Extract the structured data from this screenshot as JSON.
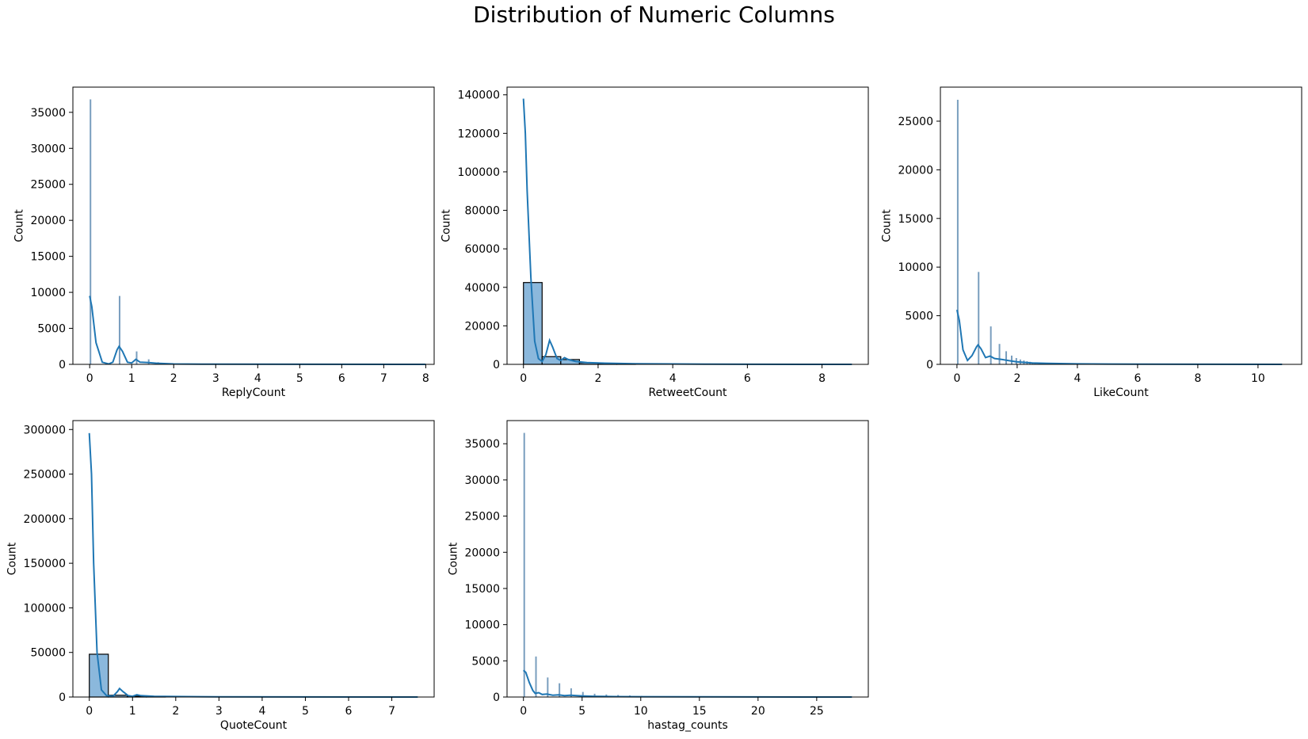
{
  "figure": {
    "title": "Distribution of Numeric Columns"
  },
  "colors": {
    "bar_fill": "#8bb8dc",
    "bar_edge": "#000000",
    "kde_line": "#1f77b4",
    "spike": "#4c7da8"
  },
  "chart_data": [
    {
      "type": "bar",
      "title": "",
      "xlabel": "ReplyCount",
      "ylabel": "Count",
      "xlim": [
        -0.4,
        8.2
      ],
      "ylim": [
        0,
        38500
      ],
      "xticks": [
        "0",
        "1",
        "2",
        "3",
        "4",
        "5",
        "6",
        "7",
        "8"
      ],
      "yticks": [
        "0",
        "5000",
        "10000",
        "15000",
        "20000",
        "25000",
        "30000",
        "35000"
      ],
      "bars": [
        {
          "x": 0.0,
          "w": 0.025,
          "h": 36800
        },
        {
          "x": 0.693,
          "w": 0.025,
          "h": 9500
        },
        {
          "x": 1.099,
          "w": 0.025,
          "h": 1800
        },
        {
          "x": 1.386,
          "w": 0.025,
          "h": 700
        },
        {
          "x": 1.609,
          "w": 0.025,
          "h": 300
        }
      ],
      "kde": [
        [
          0,
          9500
        ],
        [
          0.05,
          8000
        ],
        [
          0.15,
          3000
        ],
        [
          0.3,
          300
        ],
        [
          0.45,
          50
        ],
        [
          0.55,
          300
        ],
        [
          0.65,
          2000
        ],
        [
          0.7,
          2500
        ],
        [
          0.78,
          1800
        ],
        [
          0.9,
          300
        ],
        [
          1.0,
          200
        ],
        [
          1.1,
          700
        ],
        [
          1.2,
          300
        ],
        [
          1.4,
          250
        ],
        [
          1.6,
          150
        ],
        [
          2,
          50
        ],
        [
          3,
          20
        ],
        [
          5,
          10
        ],
        [
          8,
          0
        ]
      ]
    },
    {
      "type": "bar",
      "title": "",
      "xlabel": "RetweetCount",
      "ylabel": "Count",
      "xlim": [
        -0.44,
        9.24
      ],
      "ylim": [
        0,
        144000
      ],
      "xticks": [
        "0",
        "2",
        "4",
        "6",
        "8"
      ],
      "yticks": [
        "0",
        "20000",
        "40000",
        "60000",
        "80000",
        "100000",
        "120000",
        "140000"
      ],
      "bars": [
        {
          "x": 0.0,
          "w": 0.5,
          "h": 42500
        },
        {
          "x": 0.5,
          "w": 0.5,
          "h": 4000
        },
        {
          "x": 1.0,
          "w": 0.5,
          "h": 2500
        },
        {
          "x": 1.5,
          "w": 0.5,
          "h": 800
        },
        {
          "x": 2.0,
          "w": 0.5,
          "h": 400
        },
        {
          "x": 2.5,
          "w": 0.5,
          "h": 200
        }
      ],
      "kde": [
        [
          0,
          138000
        ],
        [
          0.05,
          120000
        ],
        [
          0.1,
          90000
        ],
        [
          0.2,
          45000
        ],
        [
          0.3,
          12000
        ],
        [
          0.4,
          3000
        ],
        [
          0.5,
          1500
        ],
        [
          0.6,
          5000
        ],
        [
          0.7,
          12500
        ],
        [
          0.78,
          9000
        ],
        [
          0.9,
          3000
        ],
        [
          1.0,
          2000
        ],
        [
          1.1,
          3500
        ],
        [
          1.2,
          2500
        ],
        [
          1.4,
          1500
        ],
        [
          1.7,
          900
        ],
        [
          2,
          700
        ],
        [
          3,
          300
        ],
        [
          4,
          200
        ],
        [
          5,
          100
        ],
        [
          6,
          60
        ],
        [
          8,
          20
        ],
        [
          8.8,
          0
        ]
      ]
    },
    {
      "type": "bar",
      "title": "",
      "xlabel": "LikeCount",
      "ylabel": "Count",
      "xlim": [
        -0.55,
        11.45
      ],
      "ylim": [
        0,
        28500
      ],
      "xticks": [
        "0",
        "2",
        "4",
        "6",
        "8",
        "10"
      ],
      "yticks": [
        "0",
        "5000",
        "10000",
        "15000",
        "20000",
        "25000"
      ],
      "bars": [
        {
          "x": 0.0,
          "w": 0.04,
          "h": 27200
        },
        {
          "x": 0.693,
          "w": 0.04,
          "h": 9500
        },
        {
          "x": 1.099,
          "w": 0.04,
          "h": 3900
        },
        {
          "x": 1.386,
          "w": 0.04,
          "h": 2100
        },
        {
          "x": 1.609,
          "w": 0.04,
          "h": 1350
        },
        {
          "x": 1.792,
          "w": 0.04,
          "h": 900
        },
        {
          "x": 1.946,
          "w": 0.04,
          "h": 650
        },
        {
          "x": 2.079,
          "w": 0.04,
          "h": 500
        },
        {
          "x": 2.197,
          "w": 0.04,
          "h": 400
        },
        {
          "x": 2.303,
          "w": 0.04,
          "h": 320
        },
        {
          "x": 2.398,
          "w": 0.04,
          "h": 260
        },
        {
          "x": 2.485,
          "w": 0.04,
          "h": 210
        },
        {
          "x": 2.565,
          "w": 0.04,
          "h": 170
        }
      ],
      "kde": [
        [
          0,
          5600
        ],
        [
          0.08,
          4500
        ],
        [
          0.2,
          1500
        ],
        [
          0.35,
          400
        ],
        [
          0.5,
          900
        ],
        [
          0.65,
          1800
        ],
        [
          0.7,
          2000
        ],
        [
          0.8,
          1600
        ],
        [
          0.95,
          700
        ],
        [
          1.1,
          850
        ],
        [
          1.25,
          600
        ],
        [
          1.5,
          500
        ],
        [
          1.8,
          350
        ],
        [
          2,
          250
        ],
        [
          2.5,
          150
        ],
        [
          3,
          100
        ],
        [
          4,
          50
        ],
        [
          6,
          20
        ],
        [
          8,
          10
        ],
        [
          10.8,
          0
        ]
      ]
    },
    {
      "type": "bar",
      "title": "",
      "xlabel": "QuoteCount",
      "ylabel": "Count",
      "xlim": [
        -0.38,
        7.98
      ],
      "ylim": [
        0,
        310000
      ],
      "xticks": [
        "0",
        "1",
        "2",
        "3",
        "4",
        "5",
        "6",
        "7"
      ],
      "yticks": [
        "0",
        "50000",
        "100000",
        "150000",
        "200000",
        "250000",
        "300000"
      ],
      "bars": [
        {
          "x": 0.0,
          "w": 0.44,
          "h": 48000
        },
        {
          "x": 0.44,
          "w": 0.44,
          "h": 2000
        },
        {
          "x": 0.88,
          "w": 0.44,
          "h": 1000
        },
        {
          "x": 1.32,
          "w": 0.44,
          "h": 400
        }
      ],
      "kde": [
        [
          0,
          296000
        ],
        [
          0.05,
          250000
        ],
        [
          0.1,
          150000
        ],
        [
          0.18,
          50000
        ],
        [
          0.28,
          8000
        ],
        [
          0.4,
          1500
        ],
        [
          0.55,
          1000
        ],
        [
          0.65,
          6000
        ],
        [
          0.7,
          9500
        ],
        [
          0.78,
          6000
        ],
        [
          0.9,
          1500
        ],
        [
          1.0,
          800
        ],
        [
          1.1,
          2500
        ],
        [
          1.2,
          1500
        ],
        [
          1.5,
          800
        ],
        [
          2,
          500
        ],
        [
          3,
          200
        ],
        [
          5,
          100
        ],
        [
          7.6,
          0
        ]
      ]
    },
    {
      "type": "bar",
      "title": "",
      "xlabel": "hastag_counts",
      "ylabel": "Count",
      "xlim": [
        -1.4,
        29.4
      ],
      "ylim": [
        0,
        38200
      ],
      "xticks": [
        "0",
        "5",
        "10",
        "15",
        "20",
        "25"
      ],
      "yticks": [
        "0",
        "5000",
        "10000",
        "15000",
        "20000",
        "25000",
        "30000",
        "35000"
      ],
      "bars": [
        {
          "x": 0.0,
          "w": 0.06,
          "h": 36500
        },
        {
          "x": 1.0,
          "w": 0.06,
          "h": 5600
        },
        {
          "x": 2.0,
          "w": 0.06,
          "h": 2700
        },
        {
          "x": 3.0,
          "w": 0.06,
          "h": 1900
        },
        {
          "x": 4.0,
          "w": 0.06,
          "h": 1200
        },
        {
          "x": 5.0,
          "w": 0.06,
          "h": 700
        },
        {
          "x": 6.0,
          "w": 0.06,
          "h": 450
        },
        {
          "x": 7.0,
          "w": 0.06,
          "h": 350
        },
        {
          "x": 8.0,
          "w": 0.06,
          "h": 280
        },
        {
          "x": 9.0,
          "w": 0.06,
          "h": 220
        },
        {
          "x": 10.0,
          "w": 0.06,
          "h": 150
        },
        {
          "x": 12.0,
          "w": 0.06,
          "h": 100
        },
        {
          "x": 15.0,
          "w": 0.06,
          "h": 80
        }
      ],
      "kde": [
        [
          0,
          3700
        ],
        [
          0.2,
          3400
        ],
        [
          0.5,
          2000
        ],
        [
          0.8,
          900
        ],
        [
          1,
          500
        ],
        [
          1.3,
          600
        ],
        [
          1.6,
          350
        ],
        [
          2,
          400
        ],
        [
          2.5,
          250
        ],
        [
          3,
          300
        ],
        [
          3.5,
          200
        ],
        [
          4,
          250
        ],
        [
          5,
          150
        ],
        [
          6,
          100
        ],
        [
          8,
          60
        ],
        [
          10,
          40
        ],
        [
          15,
          20
        ],
        [
          20,
          10
        ],
        [
          28,
          0
        ]
      ]
    }
  ]
}
